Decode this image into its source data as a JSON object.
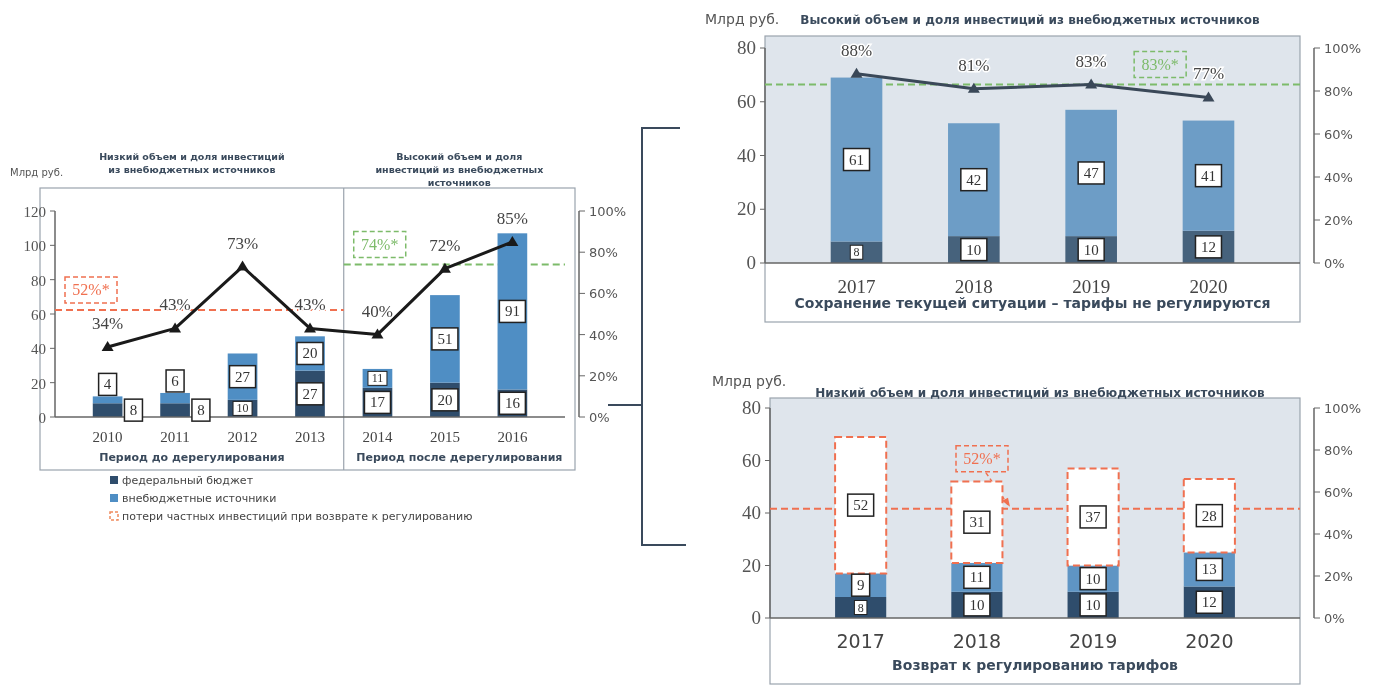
{
  "chart_data": [
    {
      "type": "bar",
      "stacked": true,
      "ylabel": "Млрд руб.",
      "categories": [
        "2010",
        "2011",
        "2012",
        "2013",
        "2014",
        "2015",
        "2016"
      ],
      "series": [
        {
          "name": "федеральный бюджет",
          "color": "#2f4d6c",
          "values": [
            8,
            8,
            10,
            27,
            17,
            20,
            16
          ],
          "value_labels": [
            "8",
            "8",
            "10",
            "27",
            "17",
            "20",
            "16"
          ]
        },
        {
          "name": "внебюджетные источники",
          "color": "#4f8ec4",
          "values": [
            4,
            6,
            27,
            20,
            11,
            51,
            91
          ],
          "value_labels": [
            "4",
            "6",
            "27",
            "20",
            "11",
            "51",
            "91"
          ]
        },
        {
          "name": "потери частных инвестиций при возврате к регулированию",
          "color": "#f08a5d",
          "line_style": "dashed",
          "values": [
            null,
            null,
            null,
            null,
            null,
            null,
            null
          ]
        },
        {
          "type": "line",
          "axis": "y2",
          "color": "#1a1a1a",
          "marker": "triangle",
          "values": [
            34,
            43,
            73,
            43,
            40,
            72,
            85
          ],
          "value_labels": [
            "34%",
            "43%",
            "73%",
            "43%",
            "40%",
            "72%",
            "85%"
          ]
        }
      ],
      "ylim": [
        0,
        120
      ],
      "yticks": [
        0,
        20,
        40,
        60,
        80,
        100,
        120
      ],
      "y2lim": [
        0,
        100
      ],
      "y2ticks": [
        {
          "value": 0,
          "label": "0%"
        },
        {
          "value": 20,
          "label": "20%"
        },
        {
          "value": 40,
          "label": "40%"
        },
        {
          "value": 60,
          "label": "60%"
        },
        {
          "value": 80,
          "label": "80%"
        },
        {
          "value": 100,
          "label": "100%"
        }
      ],
      "ref_lines": [
        {
          "axis": "y2",
          "value": 52,
          "label": "52%*",
          "color": "#f07050",
          "line_style": "dashed"
        },
        {
          "axis": "y2",
          "value": 74,
          "label": "74%*",
          "color": "#7dbb6a",
          "line_style": "dashed"
        }
      ],
      "annotations": [
        "Низкий объем и доля инвестиций из внебюджетных источников",
        "Высокий объем и доля инвестиций из внебюджетных источников",
        "Период до дерегулирования",
        "Период после дерегулирования"
      ],
      "legend": "bottom"
    },
    {
      "type": "bar",
      "stacked": true,
      "title": "Высокий объем и доля инвестиций из внебюджетных источников",
      "xlabel": "Сохранение текущей ситуации – тарифы не регулируются",
      "ylabel": "Млрд руб.",
      "categories": [
        "2017",
        "2018",
        "2019",
        "2020"
      ],
      "series": [
        {
          "color": "#46627c",
          "values": [
            8,
            10,
            10,
            12
          ],
          "value_labels": [
            "8",
            "10",
            "10",
            "12"
          ]
        },
        {
          "color": "#6d9dc6",
          "values": [
            61,
            42,
            47,
            41
          ],
          "value_labels": [
            "61",
            "42",
            "47",
            "41"
          ]
        },
        {
          "type": "line",
          "axis": "y2",
          "color": "#3a4858",
          "marker": "triangle",
          "values": [
            88,
            81,
            83,
            77
          ],
          "value_labels": [
            "88%",
            "81%",
            "83%",
            "77%"
          ]
        }
      ],
      "ylim": [
        0,
        80
      ],
      "yticks": [
        0,
        20,
        40,
        60,
        80
      ],
      "y2lim": [
        0,
        100
      ],
      "y2ticks": [
        {
          "value": 0,
          "label": "0%"
        },
        {
          "value": 20,
          "label": "20%"
        },
        {
          "value": 40,
          "label": "40%"
        },
        {
          "value": 60,
          "label": "60%"
        },
        {
          "value": 80,
          "label": "80%"
        },
        {
          "value": 100,
          "label": "100%"
        }
      ],
      "ref_lines": [
        {
          "axis": "y2",
          "value": 83,
          "label": "83%*",
          "color": "#7dbb6a",
          "line_style": "dashed"
        }
      ]
    },
    {
      "type": "bar",
      "stacked": true,
      "title": "Низкий объем и доля инвестиций из внебюджетных источников",
      "xlabel": "Возврат к регулированию тарифов",
      "ylabel": "Млрд руб.",
      "categories": [
        "2017",
        "2018",
        "2019",
        "2020"
      ],
      "series": [
        {
          "color": "#2f4d6c",
          "values": [
            8,
            10,
            10,
            12
          ],
          "value_labels": [
            "8",
            "10",
            "10",
            "12"
          ]
        },
        {
          "color": "#5f95c4",
          "values": [
            9,
            11,
            10,
            13
          ],
          "value_labels": [
            "9",
            "11",
            "10",
            "13"
          ]
        },
        {
          "color": "#f07050",
          "line_style": "dashed",
          "values": [
            52,
            31,
            37,
            28
          ],
          "value_labels": [
            "52",
            "31",
            "37",
            "28"
          ]
        }
      ],
      "ylim": [
        0,
        80
      ],
      "yticks": [
        0,
        20,
        40,
        60,
        80
      ],
      "y2lim": [
        0,
        100
      ],
      "y2ticks": [
        {
          "value": 0,
          "label": "0%"
        },
        {
          "value": 20,
          "label": "20%"
        },
        {
          "value": 40,
          "label": "40%"
        },
        {
          "value": 60,
          "label": "60%"
        },
        {
          "value": 80,
          "label": "80%"
        },
        {
          "value": 100,
          "label": "100%"
        }
      ],
      "ref_lines": [
        {
          "axis": "y2",
          "value": 52,
          "label": "52%*",
          "color": "#f07050",
          "line_style": "dashed"
        }
      ]
    }
  ]
}
